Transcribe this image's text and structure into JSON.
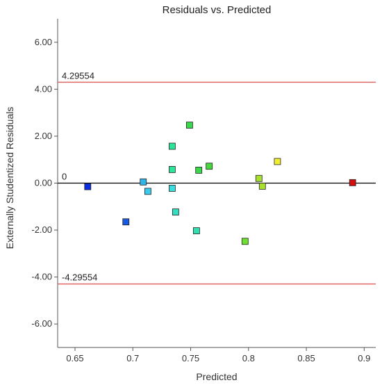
{
  "chart_data": {
    "type": "scatter",
    "title": "Residuals vs. Predicted",
    "xlabel": "Predicted",
    "ylabel": "Externally Studentized Residuals",
    "xlim": [
      0.635,
      0.91
    ],
    "ylim": [
      -7.0,
      7.0
    ],
    "x_ticks": [
      0.65,
      0.7,
      0.75,
      0.8,
      0.85,
      0.9
    ],
    "x_tick_labels": [
      "0.65",
      "0.7",
      "0.75",
      "0.8",
      "0.85",
      "0.9"
    ],
    "y_ticks": [
      -6,
      -4,
      -2,
      0,
      2,
      4,
      6
    ],
    "y_tick_labels": [
      "-6.00",
      "-4.00",
      "-2.00",
      "0.00",
      "2.00",
      "4.00",
      "6.00"
    ],
    "reference_lines": [
      {
        "label": "4.29554",
        "value": 4.29554,
        "color": "#e06666"
      },
      {
        "label": "0",
        "value": 0,
        "color": "#000000"
      },
      {
        "label": "-4.29554",
        "value": -4.29554,
        "color": "#e06666"
      }
    ],
    "grid": false,
    "points": [
      {
        "x": 0.661,
        "y": -0.15,
        "color": "#0a2ee0"
      },
      {
        "x": 0.694,
        "y": -1.65,
        "color": "#1a5ae0"
      },
      {
        "x": 0.709,
        "y": 0.05,
        "color": "#30b6e6"
      },
      {
        "x": 0.713,
        "y": -0.35,
        "color": "#38cbef"
      },
      {
        "x": 0.734,
        "y": 1.57,
        "color": "#2ee49a"
      },
      {
        "x": 0.734,
        "y": 0.58,
        "color": "#2ee49a"
      },
      {
        "x": 0.734,
        "y": -0.22,
        "color": "#3cdcdc"
      },
      {
        "x": 0.737,
        "y": -1.23,
        "color": "#30e0c0"
      },
      {
        "x": 0.749,
        "y": 2.47,
        "color": "#3ad84a"
      },
      {
        "x": 0.755,
        "y": -2.03,
        "color": "#30e0b0"
      },
      {
        "x": 0.757,
        "y": 0.55,
        "color": "#3ad84a"
      },
      {
        "x": 0.766,
        "y": 0.72,
        "color": "#44d83c"
      },
      {
        "x": 0.797,
        "y": -2.48,
        "color": "#6ee030"
      },
      {
        "x": 0.809,
        "y": 0.2,
        "color": "#a8e030"
      },
      {
        "x": 0.812,
        "y": -0.13,
        "color": "#a8e030"
      },
      {
        "x": 0.825,
        "y": 0.92,
        "color": "#f0f030"
      },
      {
        "x": 0.89,
        "y": 0.02,
        "color": "#d01010"
      }
    ]
  }
}
